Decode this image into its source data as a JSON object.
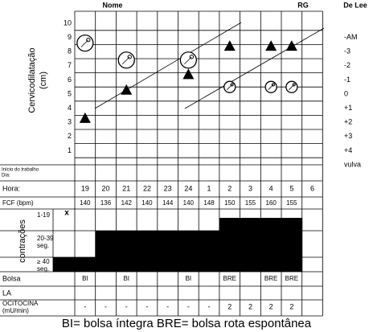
{
  "header": {
    "name_label": "Nome",
    "rg_label": "RG",
    "delee_label": "De Lee"
  },
  "dilatation_axis": {
    "title": [
      "Cervicodilatação",
      "(cm)"
    ],
    "ticks": [
      10,
      9,
      8,
      7,
      6,
      5,
      4,
      3,
      2,
      1
    ]
  },
  "delee_axis": {
    "ticks": [
      "-AM",
      "-3",
      "-2",
      "-1",
      "0",
      "+1",
      "+2",
      "+3",
      "+4",
      "vulva"
    ]
  },
  "dilatation": [
    3.3,
    null,
    5.3,
    null,
    null,
    6.4,
    null,
    8.4,
    null,
    8.4,
    8.4,
    null
  ],
  "descent": [
    -3.6,
    null,
    -2.4,
    null,
    null,
    -2.4,
    null,
    -0.5,
    null,
    -0.5,
    -0.5,
    null
  ],
  "table": {
    "start_label": [
      "Início do trabalho",
      "Dia:"
    ],
    "hour_label": "Hora:",
    "hours": [
      19,
      20,
      21,
      22,
      23,
      24,
      1,
      2,
      3,
      4,
      5,
      6
    ],
    "fcf_label": "FCF (bpm)",
    "fcf": [
      140,
      136,
      142,
      140,
      144,
      140,
      148,
      150,
      155,
      160,
      155,
      null
    ],
    "contractions_title": "contrações",
    "contraction_rows": [
      [
        "1-19"
      ],
      [
        "20-39",
        "seg."
      ],
      [
        "≥ 40",
        "seg."
      ]
    ],
    "contraction_mark": "x",
    "contraction_levels": [
      1,
      2,
      2,
      2,
      2,
      2,
      2,
      3,
      3,
      3,
      3,
      null
    ],
    "bolsa_label": "Bolsa",
    "bolsa": [
      "BI",
      null,
      "BI",
      null,
      null,
      "BI",
      null,
      "BRE",
      null,
      "BRE",
      "BRE",
      null
    ],
    "la_label": "LA",
    "ocitocina_label": [
      "OCITOCINA",
      "(mU/min)"
    ],
    "ocitocina": [
      "-",
      "-",
      "-",
      "-",
      "-",
      "-",
      "-",
      "2",
      "2",
      "2",
      "2",
      null
    ]
  },
  "legend": "BI= bolsa íntegra   BRE= bolsa rota espontânea"
}
